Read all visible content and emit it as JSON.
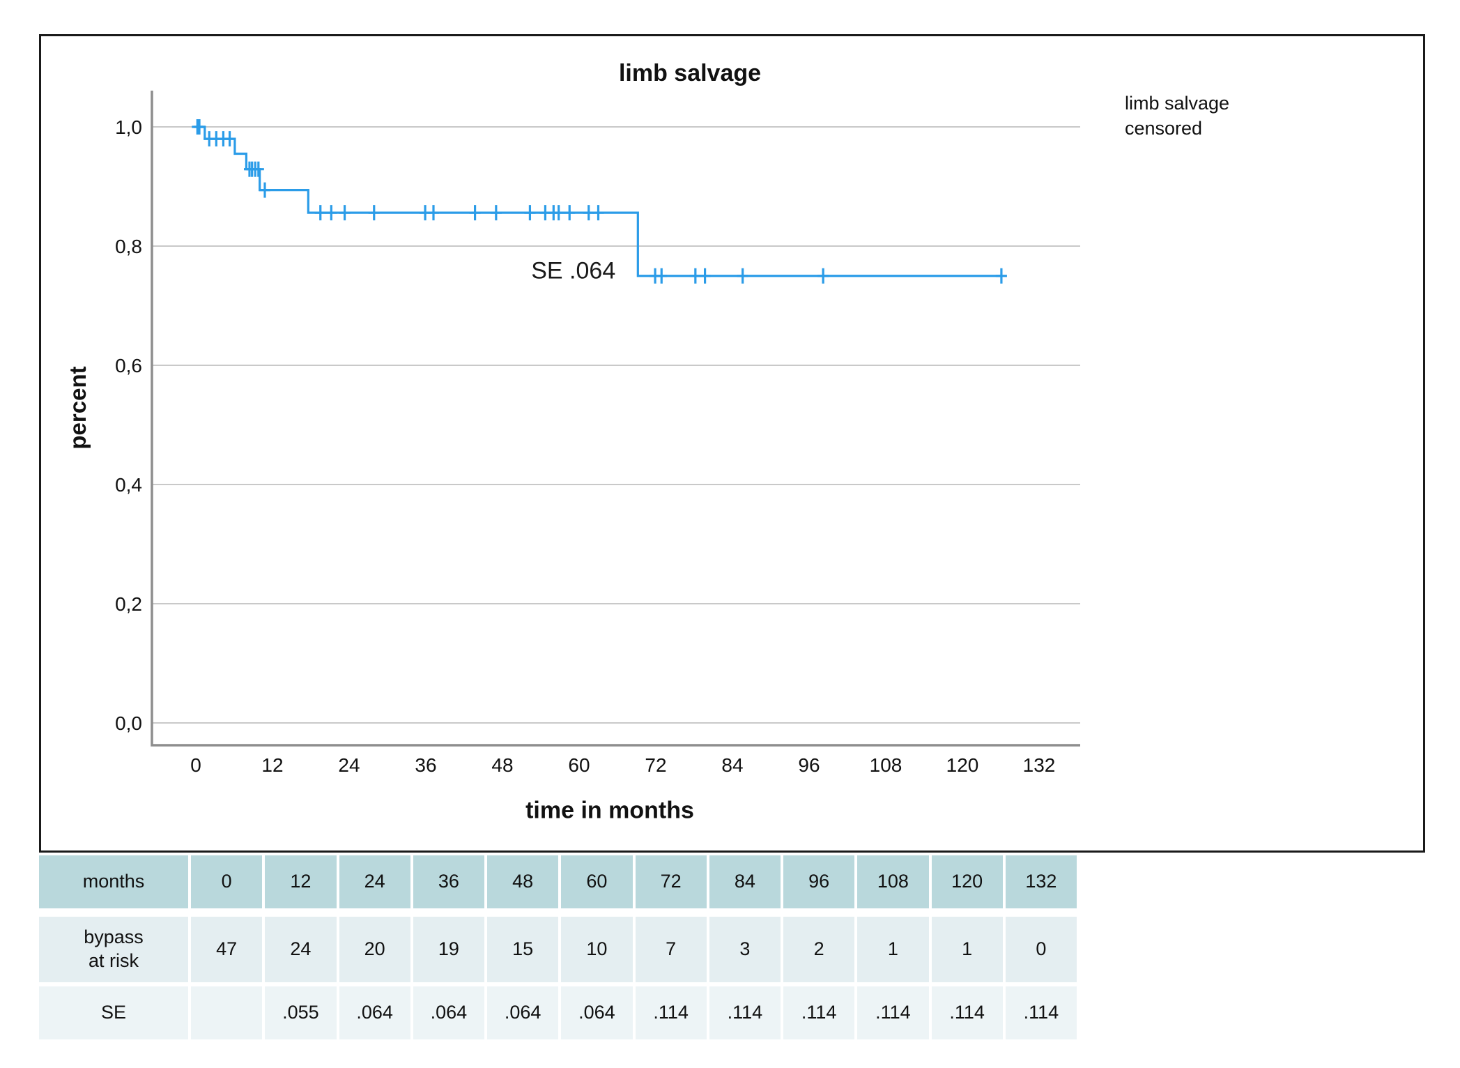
{
  "figure": {
    "title": "limb salvage",
    "x_axis_label": "time in months",
    "y_axis_label": "percent",
    "annotation_text": "SE .064",
    "legend": {
      "series_label": "limb salvage",
      "censored_label": "censored"
    }
  },
  "colors": {
    "curve_blue": "#2b9ce8",
    "grid_gray": "#c9c9c9",
    "axis_gray": "#8e8e8e",
    "box_border": "#1a1a1a",
    "table_header_teal": "#b9d8dc",
    "table_at_risk_row": "#e4eef1",
    "table_se_row": "#edf4f6",
    "text_black": "#111111"
  },
  "chart_data": {
    "type": "line",
    "subtype": "kaplan-meier-step",
    "title": "limb salvage",
    "xlabel": "time in months",
    "ylabel": "percent",
    "grid": "horizontal-only",
    "legend_position": "top-right-outside",
    "xlim": [
      -8,
      139
    ],
    "ylim": [
      -0.04,
      1.06
    ],
    "x_ticks": [
      0,
      12,
      24,
      36,
      48,
      60,
      72,
      84,
      96,
      108,
      120,
      132
    ],
    "y_ticks": [
      {
        "value": 1.0,
        "label": "1,0"
      },
      {
        "value": 0.8,
        "label": "0,8"
      },
      {
        "value": 0.6,
        "label": "0,6"
      },
      {
        "value": 0.4,
        "label": "0,4"
      },
      {
        "value": 0.2,
        "label": "0,2"
      },
      {
        "value": 0.0,
        "label": "0,0"
      }
    ],
    "series": [
      {
        "name": "limb salvage",
        "step_points": [
          [
            0,
            1.0
          ],
          [
            1.4,
            0.98
          ],
          [
            6.1,
            0.955
          ],
          [
            7.9,
            0.929
          ],
          [
            10.0,
            0.894
          ],
          [
            17.6,
            0.856
          ],
          [
            69.2,
            0.75
          ]
        ],
        "end_month": 126.1
      }
    ],
    "censored_marks": [
      [
        0.25,
        1.0
      ],
      [
        0.55,
        1.0
      ],
      [
        2.1,
        0.98
      ],
      [
        3.2,
        0.98
      ],
      [
        4.3,
        0.98
      ],
      [
        5.3,
        0.98
      ],
      [
        8.4,
        0.929
      ],
      [
        8.8,
        0.929
      ],
      [
        9.3,
        0.929
      ],
      [
        9.8,
        0.929
      ],
      [
        10.8,
        0.894
      ],
      [
        19.5,
        0.856
      ],
      [
        21.2,
        0.856
      ],
      [
        23.3,
        0.856
      ],
      [
        27.9,
        0.856
      ],
      [
        35.9,
        0.856
      ],
      [
        37.2,
        0.856
      ],
      [
        43.7,
        0.856
      ],
      [
        47.0,
        0.856
      ],
      [
        52.3,
        0.856
      ],
      [
        54.7,
        0.856
      ],
      [
        56.0,
        0.856
      ],
      [
        56.8,
        0.856
      ],
      [
        58.5,
        0.856
      ],
      [
        61.5,
        0.856
      ],
      [
        63.0,
        0.856
      ],
      [
        71.9,
        0.75
      ],
      [
        72.9,
        0.75
      ],
      [
        78.2,
        0.75
      ],
      [
        79.7,
        0.75
      ],
      [
        85.6,
        0.75
      ],
      [
        98.2,
        0.75
      ],
      [
        126.1,
        0.75
      ]
    ],
    "annotation": {
      "text": "SE .064",
      "x_month": 59.1,
      "y_value": 0.758
    }
  },
  "risk_table": {
    "rows": [
      {
        "kind": "months",
        "label_lines": [
          "months"
        ],
        "values": [
          "0",
          "12",
          "24",
          "36",
          "48",
          "60",
          "72",
          "84",
          "96",
          "108",
          "120",
          "132"
        ]
      },
      {
        "kind": "at_risk",
        "label_lines": [
          "bypass",
          "at risk"
        ],
        "values": [
          "47",
          "24",
          "20",
          "19",
          "15",
          "10",
          "7",
          "3",
          "2",
          "1",
          "1",
          "0"
        ]
      },
      {
        "kind": "se",
        "label_lines": [
          "SE"
        ],
        "values": [
          "",
          ".055",
          ".064",
          ".064",
          ".064",
          ".064",
          ".114",
          ".114",
          ".114",
          ".114",
          ".114",
          ".114"
        ]
      }
    ]
  }
}
